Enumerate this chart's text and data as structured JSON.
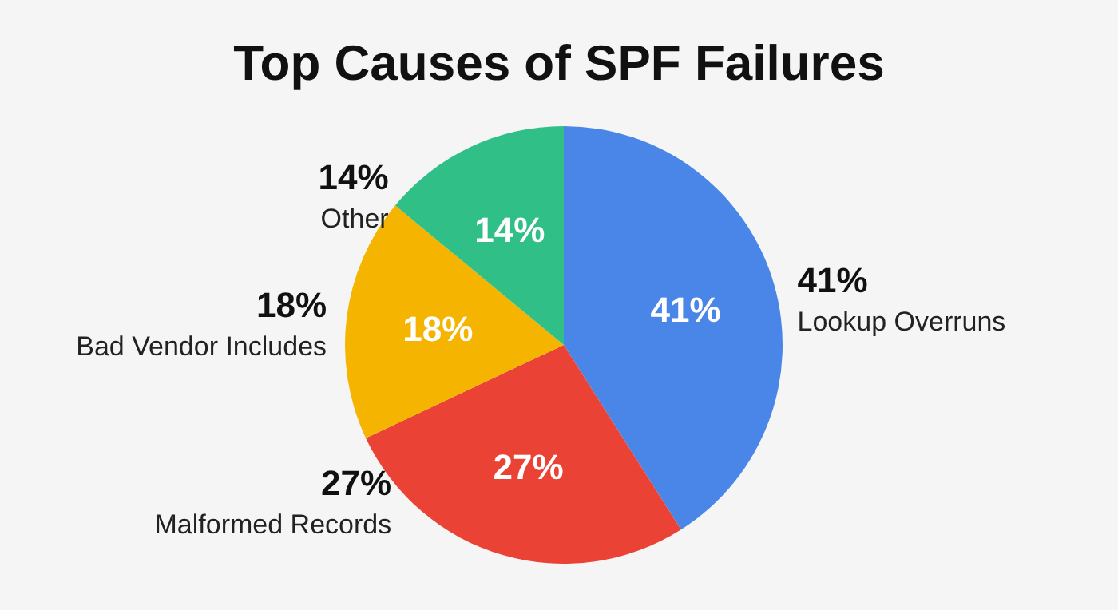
{
  "chart_data": {
    "type": "pie",
    "title": "Top Causes of SPF Failures",
    "categories": [
      "Lookup Overruns",
      "Malformed Records",
      "Bad Vendor Includes",
      "Other"
    ],
    "values": [
      41,
      27,
      18,
      14
    ],
    "colors": [
      "#4a86e8",
      "#ea4335",
      "#f4b400",
      "#2fbf87"
    ],
    "value_labels": [
      "41%",
      "27%",
      "18%",
      "14%"
    ]
  }
}
